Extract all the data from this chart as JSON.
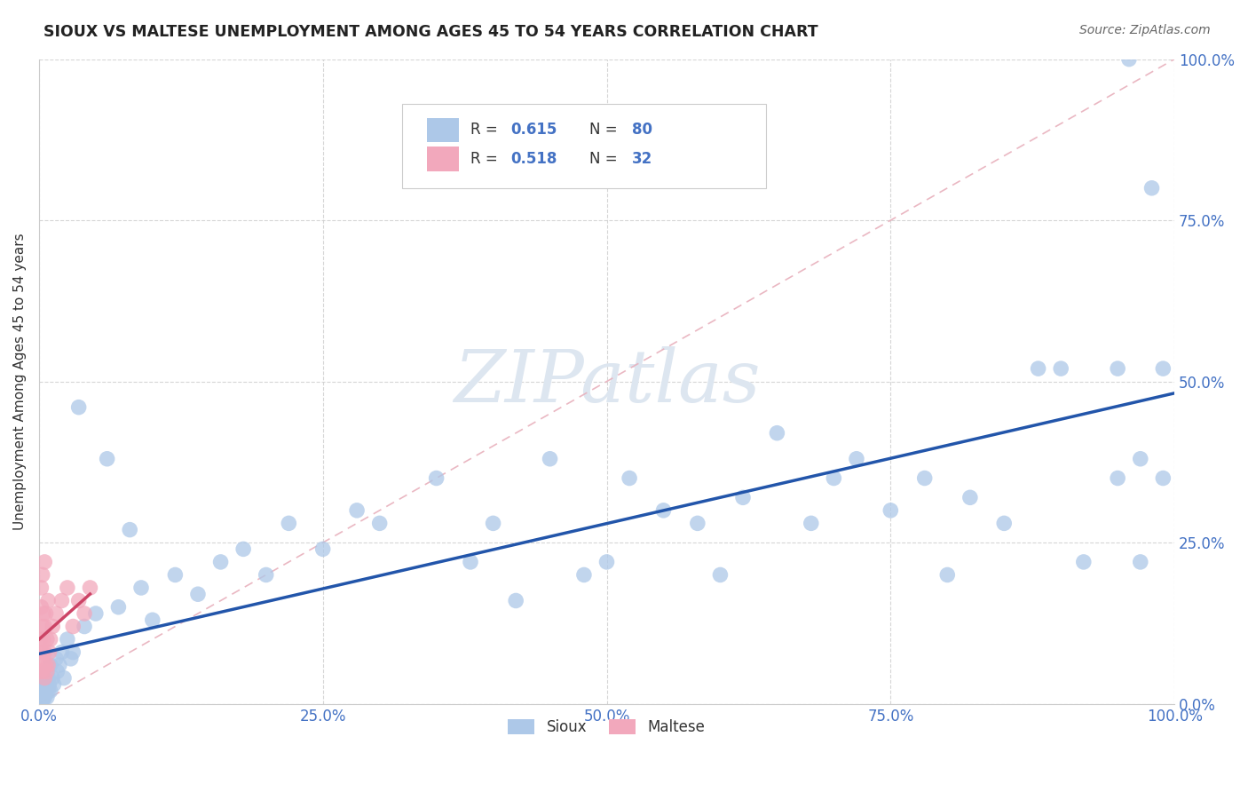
{
  "title": "SIOUX VS MALTESE UNEMPLOYMENT AMONG AGES 45 TO 54 YEARS CORRELATION CHART",
  "source": "Source: ZipAtlas.com",
  "ylabel": "Unemployment Among Ages 45 to 54 years",
  "xlim": [
    0,
    1
  ],
  "ylim": [
    0,
    1
  ],
  "xticks": [
    0.0,
    0.25,
    0.5,
    0.75,
    1.0
  ],
  "yticks": [
    0.0,
    0.25,
    0.5,
    0.75,
    1.0
  ],
  "xticklabels": [
    "0.0%",
    "25.0%",
    "50.0%",
    "75.0%",
    "100.0%"
  ],
  "yticklabels": [
    "0.0%",
    "25.0%",
    "50.0%",
    "75.0%",
    "100.0%"
  ],
  "sioux_R": 0.615,
  "sioux_N": 80,
  "maltese_R": 0.518,
  "maltese_N": 32,
  "sioux_color": "#adc8e8",
  "maltese_color": "#f2a8bc",
  "sioux_line_color": "#2255aa",
  "maltese_line_color": "#cc4466",
  "ref_line_color": "#e8b0bc",
  "watermark_color": "#dde6f0",
  "background_color": "#ffffff",
  "tick_color": "#4472c4",
  "sioux_x": [
    0.001,
    0.002,
    0.002,
    0.003,
    0.003,
    0.003,
    0.004,
    0.004,
    0.005,
    0.005,
    0.005,
    0.006,
    0.006,
    0.007,
    0.007,
    0.008,
    0.008,
    0.009,
    0.01,
    0.01,
    0.012,
    0.013,
    0.015,
    0.016,
    0.018,
    0.02,
    0.022,
    0.025,
    0.028,
    0.03,
    0.035,
    0.04,
    0.05,
    0.06,
    0.07,
    0.08,
    0.09,
    0.1,
    0.12,
    0.14,
    0.16,
    0.18,
    0.2,
    0.22,
    0.25,
    0.28,
    0.3,
    0.35,
    0.38,
    0.4,
    0.42,
    0.45,
    0.48,
    0.5,
    0.52,
    0.55,
    0.58,
    0.6,
    0.62,
    0.65,
    0.68,
    0.7,
    0.72,
    0.75,
    0.78,
    0.8,
    0.82,
    0.85,
    0.88,
    0.9,
    0.92,
    0.95,
    0.95,
    0.97,
    0.97,
    0.98,
    0.99,
    0.99,
    0.006,
    0.96
  ],
  "sioux_y": [
    0.01,
    0.005,
    0.02,
    0.01,
    0.015,
    0.03,
    0.008,
    0.025,
    0.01,
    0.015,
    0.04,
    0.02,
    0.03,
    0.01,
    0.05,
    0.02,
    0.04,
    0.03,
    0.02,
    0.06,
    0.04,
    0.03,
    0.07,
    0.05,
    0.06,
    0.08,
    0.04,
    0.1,
    0.07,
    0.08,
    0.46,
    0.12,
    0.14,
    0.38,
    0.15,
    0.27,
    0.18,
    0.13,
    0.2,
    0.17,
    0.22,
    0.24,
    0.2,
    0.28,
    0.24,
    0.3,
    0.28,
    0.35,
    0.22,
    0.28,
    0.16,
    0.38,
    0.2,
    0.22,
    0.35,
    0.3,
    0.28,
    0.2,
    0.32,
    0.42,
    0.28,
    0.35,
    0.38,
    0.3,
    0.35,
    0.2,
    0.32,
    0.28,
    0.52,
    0.52,
    0.22,
    0.52,
    0.35,
    0.22,
    0.38,
    0.8,
    0.52,
    0.35,
    0.02,
    1.0
  ],
  "maltese_x": [
    0.001,
    0.001,
    0.002,
    0.002,
    0.002,
    0.003,
    0.003,
    0.003,
    0.003,
    0.004,
    0.004,
    0.004,
    0.005,
    0.005,
    0.005,
    0.005,
    0.006,
    0.006,
    0.007,
    0.007,
    0.008,
    0.008,
    0.009,
    0.01,
    0.012,
    0.015,
    0.02,
    0.025,
    0.03,
    0.035,
    0.04,
    0.045
  ],
  "maltese_y": [
    0.05,
    0.1,
    0.08,
    0.15,
    0.18,
    0.05,
    0.08,
    0.12,
    0.2,
    0.06,
    0.1,
    0.14,
    0.04,
    0.08,
    0.12,
    0.22,
    0.06,
    0.14,
    0.05,
    0.1,
    0.06,
    0.16,
    0.08,
    0.1,
    0.12,
    0.14,
    0.16,
    0.18,
    0.12,
    0.16,
    0.14,
    0.18
  ]
}
